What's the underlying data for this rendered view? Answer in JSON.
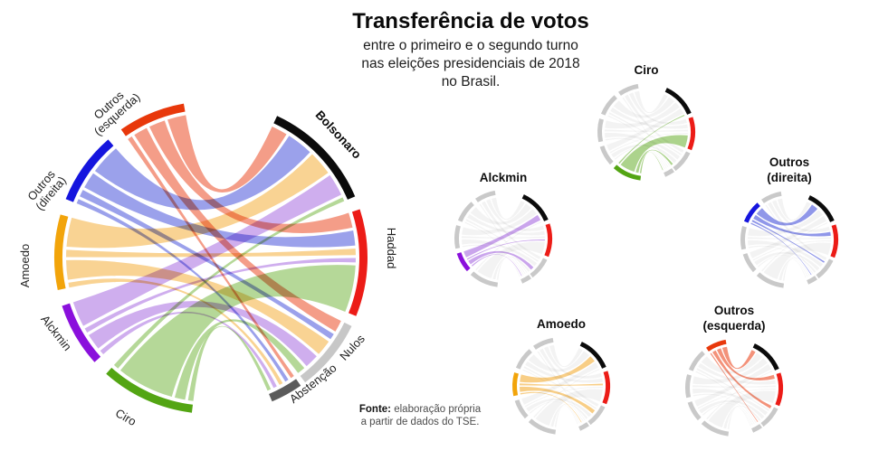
{
  "page": {
    "title": "Transferência de votos",
    "subtitle_lines": [
      "entre o primeiro e o segundo turno",
      "nas eleições presidenciais de 2018",
      "no Brasil."
    ],
    "source_note": {
      "label": "Fonte:",
      "line1": "elaboração própria",
      "line2": "a partir de dados do TSE."
    }
  },
  "chart_data": {
    "type": "chord",
    "title": "Transferência de votos",
    "subtitle": "entre o primeiro e o segundo turno nas eleições presidenciais de 2018 no Brasil.",
    "value_unit": "relative flow width (estimated from figure)",
    "layout_hint": {
      "sources_side": "left",
      "targets_side": "right",
      "grid": false
    },
    "colors": {
      "muted_ribbon": "#e9e9e9",
      "muted_arc": "#c9c9c9",
      "background": "#ffffff"
    },
    "small_multiple_colored_targets": [
      "bolsonaro",
      "haddad"
    ],
    "nodes": [
      {
        "id": "bolsonaro",
        "label": "Bolsonaro",
        "label_lines": [
          "Bolsonaro"
        ],
        "role": "target",
        "arc_color": "#0b0b0b"
      },
      {
        "id": "haddad",
        "label": "Haddad",
        "label_lines": [
          "Haddad"
        ],
        "role": "target",
        "arc_color": "#ec1c17"
      },
      {
        "id": "nulos",
        "label": "Nulos",
        "label_lines": [
          "Nulos"
        ],
        "role": "target",
        "arc_color": "#c7c7c7"
      },
      {
        "id": "abstencao",
        "label": "Abstenção",
        "label_lines": [
          "Abstenção"
        ],
        "role": "target",
        "arc_color": "#5b5b5b"
      },
      {
        "id": "ciro",
        "label": "Ciro",
        "label_lines": [
          "Ciro"
        ],
        "role": "source",
        "arc_color": "#53a513",
        "ribbon_color": "#a8d186"
      },
      {
        "id": "alckmin",
        "label": "Alckmin",
        "label_lines": [
          "Alckmin"
        ],
        "role": "source",
        "arc_color": "#8a10dc",
        "ribbon_color": "#c7a0eb"
      },
      {
        "id": "amoedo",
        "label": "Amoedo",
        "label_lines": [
          "Amoedo"
        ],
        "role": "source",
        "arc_color": "#f2a40a",
        "ribbon_color": "#f8cb80"
      },
      {
        "id": "outros_direita",
        "label": "Outros (direita)",
        "label_lines": [
          "Outros",
          "(direita)"
        ],
        "role": "source",
        "arc_color": "#1515de",
        "ribbon_color": "#8a91e8"
      },
      {
        "id": "outros_esquerda",
        "label": "Outros (esquerda)",
        "label_lines": [
          "Outros",
          "(esquerda)"
        ],
        "role": "source",
        "arc_color": "#e8380b",
        "ribbon_color": "#f28c73"
      }
    ],
    "flows": [
      {
        "from": "outros_esquerda",
        "to": "bolsonaro",
        "value": 8
      },
      {
        "from": "outros_esquerda",
        "to": "haddad",
        "value": 7
      },
      {
        "from": "outros_esquerda",
        "to": "nulos",
        "value": 6
      },
      {
        "from": "outros_esquerda",
        "to": "abstencao",
        "value": 2
      },
      {
        "from": "outros_direita",
        "to": "bolsonaro",
        "value": 13
      },
      {
        "from": "outros_direita",
        "to": "haddad",
        "value": 7
      },
      {
        "from": "outros_direita",
        "to": "nulos",
        "value": 3
      },
      {
        "from": "outros_direita",
        "to": "abstencao",
        "value": 2
      },
      {
        "from": "amoedo",
        "to": "bolsonaro",
        "value": 12
      },
      {
        "from": "amoedo",
        "to": "haddad",
        "value": 3
      },
      {
        "from": "amoedo",
        "to": "nulos",
        "value": 8
      },
      {
        "from": "amoedo",
        "to": "abstencao",
        "value": 2
      },
      {
        "from": "alckmin",
        "to": "bolsonaro",
        "value": 11
      },
      {
        "from": "alckmin",
        "to": "haddad",
        "value": 2
      },
      {
        "from": "alckmin",
        "to": "nulos",
        "value": 7
      },
      {
        "from": "alckmin",
        "to": "abstencao",
        "value": 2
      },
      {
        "from": "ciro",
        "to": "bolsonaro",
        "value": 2
      },
      {
        "from": "ciro",
        "to": "haddad",
        "value": 22
      },
      {
        "from": "ciro",
        "to": "nulos",
        "value": 4
      },
      {
        "from": "ciro",
        "to": "abstencao",
        "value": 2
      }
    ],
    "small_multiples": [
      {
        "highlight": "ciro",
        "title_lines": [
          "Ciro"
        ]
      },
      {
        "highlight": "alckmin",
        "title_lines": [
          "Alckmin"
        ]
      },
      {
        "highlight": "outros_direita",
        "title_lines": [
          "Outros",
          "(direita)"
        ]
      },
      {
        "highlight": "amoedo",
        "title_lines": [
          "Amoedo"
        ]
      },
      {
        "highlight": "outros_esquerda",
        "title_lines": [
          "Outros",
          "(esquerda)"
        ]
      }
    ]
  }
}
